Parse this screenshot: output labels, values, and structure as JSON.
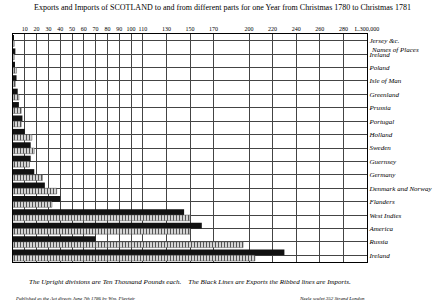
{
  "chart_data": {
    "type": "bar",
    "orientation": "horizontal",
    "title": "Exports and Imports of SCOTLAND to and from different parts for one Year from Christmas 1780 to Christmas 1781",
    "categories": [
      "Jersey &c.",
      "Ireland",
      "Poland",
      "Isle of Man",
      "Greenland",
      "Prussia",
      "Portugal",
      "Holland",
      "Sweden",
      "Guernsey",
      "Germany",
      "Denmark and Norway",
      "Flanders",
      "West Indies",
      "America",
      "Russia",
      "Ireland"
    ],
    "series": [
      {
        "color": "#111111",
        "marker": "solid",
        "values": [
          0.5,
          2,
          1,
          3,
          4,
          5,
          8,
          10,
          15,
          15,
          18,
          27,
          40,
          145,
          160,
          70,
          230
        ]
      },
      {
        "color": "#555555",
        "marker": "ribbed",
        "values": [
          1,
          1,
          3,
          2,
          5,
          7,
          7,
          16,
          18,
          14,
          25,
          37,
          33,
          150,
          150,
          195,
          205
        ]
      }
    ],
    "xlim": [
      0,
      300
    ],
    "xticks": [
      10,
      20,
      30,
      40,
      50,
      60,
      70,
      80,
      90,
      100,
      110,
      130,
      150,
      170,
      200,
      220,
      240,
      260,
      280,
      {
        "value": 300,
        "label": "L.300,000"
      }
    ],
    "grid": true,
    "annotations": [
      "Names of Places",
      "The Upright divisions are Ten Thousand Pounds each.    The Black Lines are Exports the Ribbed lines are Imports.",
      "Published as the Act directs June 7th 1786 by Wm. Playfair",
      "Neele sculpt 352 Strand London"
    ]
  }
}
